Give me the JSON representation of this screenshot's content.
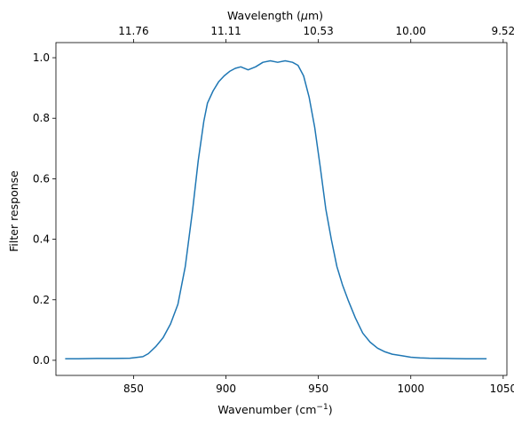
{
  "chart_data": {
    "type": "line",
    "xlabel": "Wavenumber (cm",
    "xlabel_sup": "−1",
    "xlabel_end": ")",
    "ylabel": "Filter response",
    "top_xlabel": "Wavelength (",
    "top_xlabel_mu": "μ",
    "top_xlabel_end": "m)",
    "xlim": [
      808,
      1052
    ],
    "ylim": [
      -0.05,
      1.05
    ],
    "xticks": [
      850,
      900,
      950,
      1000,
      1050
    ],
    "yticks": [
      0.0,
      0.2,
      0.4,
      0.6,
      0.8,
      1.0
    ],
    "top_ticks": [
      {
        "wavenumber": 850,
        "label": "11.76"
      },
      {
        "wavenumber": 900,
        "label": "11.11"
      },
      {
        "wavenumber": 950,
        "label": "10.53"
      },
      {
        "wavenumber": 1000,
        "label": "10.00"
      },
      {
        "wavenumber": 1050,
        "label": "9.52"
      }
    ],
    "grid": false,
    "line_color": "#1f77b4",
    "series": [
      {
        "x": [
          813,
          820,
          830,
          840,
          848,
          855,
          858,
          862,
          866,
          870,
          874,
          878,
          882,
          885,
          888,
          890,
          893,
          896,
          899,
          902,
          905,
          908,
          912,
          916,
          920,
          924,
          928,
          932,
          936,
          939,
          942,
          945,
          948,
          951,
          954,
          957,
          960,
          963,
          966,
          970,
          974,
          978,
          982,
          986,
          990,
          995,
          1000,
          1005,
          1010,
          1020,
          1030,
          1041
        ],
        "y": [
          0.005,
          0.005,
          0.006,
          0.006,
          0.007,
          0.012,
          0.022,
          0.045,
          0.075,
          0.12,
          0.185,
          0.31,
          0.5,
          0.66,
          0.79,
          0.85,
          0.89,
          0.92,
          0.94,
          0.955,
          0.965,
          0.97,
          0.96,
          0.97,
          0.985,
          0.99,
          0.985,
          0.99,
          0.985,
          0.975,
          0.94,
          0.87,
          0.77,
          0.64,
          0.5,
          0.4,
          0.31,
          0.25,
          0.2,
          0.14,
          0.09,
          0.06,
          0.04,
          0.028,
          0.02,
          0.015,
          0.01,
          0.008,
          0.007,
          0.006,
          0.005,
          0.005
        ]
      }
    ]
  }
}
